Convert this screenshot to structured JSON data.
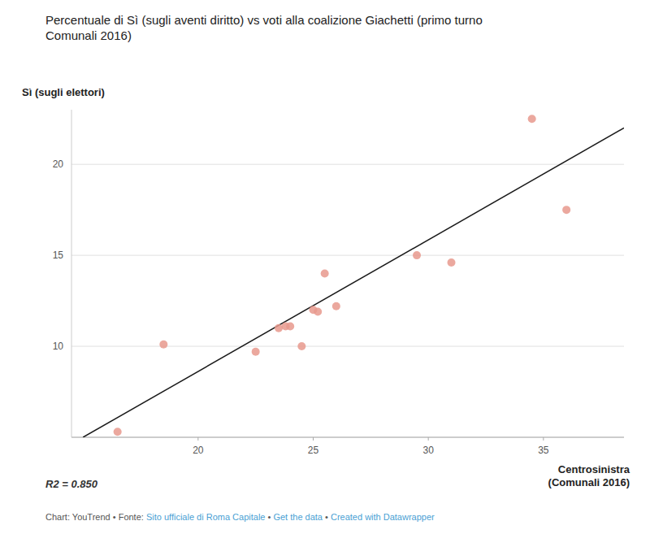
{
  "chart_data": {
    "type": "scatter",
    "title": "Percentuale di Sì (sugli aventi diritto) vs voti alla coalizione Giachetti (primo turno\nComunali 2016)",
    "y_label": "Sì (sugli elettori)",
    "x_label": "Centrosinistra\n(Comunali 2016)",
    "series": [
      {
        "type": "scatter",
        "color": "#e8998d",
        "x": [
          16.5,
          18.5,
          22.5,
          23.5,
          23.8,
          24.0,
          24.5,
          25.0,
          25.2,
          25.5,
          26.0,
          29.5,
          31.0,
          34.5,
          36.0
        ],
        "values": [
          5.3,
          10.1,
          9.7,
          11.0,
          11.1,
          11.1,
          10.0,
          12.0,
          11.9,
          14.0,
          12.2,
          15.0,
          14.6,
          22.5,
          17.5
        ]
      },
      {
        "type": "line",
        "color": "#1a1a1a",
        "x": [
          15.0,
          38.5
        ],
        "values": [
          5.0,
          22.0
        ]
      }
    ],
    "xlim": [
      14.5,
      38.5
    ],
    "ylim": [
      5,
      23
    ],
    "xticks": [
      20,
      25,
      30,
      35
    ],
    "yticks": [
      {
        "value": 5,
        "label": null
      },
      10,
      15,
      20
    ],
    "grid": true,
    "annotations": [
      "R2 = 0.850"
    ],
    "footnote": [
      {
        "text": "Chart: YouTrend • Fonte: ",
        "color": "#555555"
      },
      {
        "text": "Sito ufficiale di Roma Capitale",
        "color": "#4a9fd4"
      },
      {
        "text": " • ",
        "color": "#555555"
      },
      {
        "text": "Get the data",
        "color": "#4a9fd4"
      },
      {
        "text": " • ",
        "color": "#555555"
      },
      {
        "text": "Created with Datawrapper",
        "color": "#4a9fd4"
      }
    ]
  }
}
